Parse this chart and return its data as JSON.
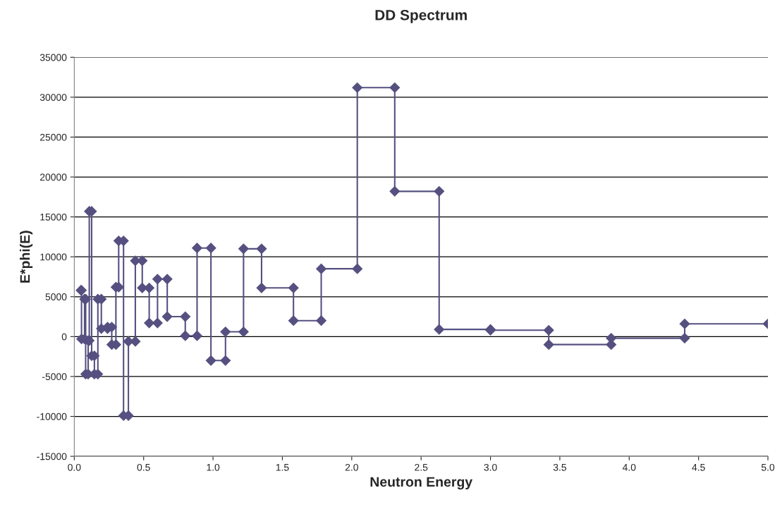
{
  "chart_data": {
    "type": "line",
    "title": "DD Spectrum",
    "xlabel": "Neutron Energy",
    "ylabel": "E*phi(E)",
    "xlim": [
      0,
      5
    ],
    "xticks": [
      {
        "value": 0,
        "label": "0.0"
      },
      {
        "value": 0.5,
        "label": "0.5"
      },
      {
        "value": 1,
        "label": "1.0"
      },
      {
        "value": 1.5,
        "label": "1.5"
      },
      {
        "value": 2,
        "label": "2.0"
      },
      {
        "value": 2.5,
        "label": "2.5"
      },
      {
        "value": 3,
        "label": "3.0"
      },
      {
        "value": 3.5,
        "label": "3.5"
      },
      {
        "value": 4,
        "label": "4.0"
      },
      {
        "value": 4.5,
        "label": "4.5"
      },
      {
        "value": 5,
        "label": "5.0"
      }
    ],
    "ylim": [
      -15000,
      35000
    ],
    "yticks": [
      -15000,
      -10000,
      -5000,
      0,
      5000,
      10000,
      15000,
      20000,
      25000,
      30000,
      35000
    ],
    "grid": "y",
    "marker": "diamond",
    "line_style": "solid",
    "legend": false,
    "series": [
      {
        "color": "#555080",
        "x": [
          0.048,
          0.052,
          0.052,
          0.074,
          0.074,
          0.082,
          0.082,
          0.1,
          0.1,
          0.108,
          0.108,
          0.125,
          0.125,
          0.145,
          0.145,
          0.17,
          0.17,
          0.195,
          0.195,
          0.24,
          0.24,
          0.27,
          0.27,
          0.3,
          0.3,
          0.32,
          0.32,
          0.355,
          0.355,
          0.39,
          0.39,
          0.44,
          0.44,
          0.49,
          0.49,
          0.54,
          0.54,
          0.6,
          0.6,
          0.67,
          0.67,
          0.8,
          0.8,
          0.885,
          0.885,
          0.985,
          0.985,
          1.09,
          1.09,
          1.22,
          1.22,
          1.35,
          1.35,
          1.58,
          1.58,
          1.78,
          1.78,
          2.04,
          2.04,
          2.31,
          2.31,
          2.63,
          2.63,
          3.0,
          3.0,
          3.42,
          3.42,
          3.87,
          3.87,
          4.4,
          4.4,
          5.0
        ],
        "values": [
          5800,
          5800,
          -300,
          -300,
          4700,
          4700,
          -4700,
          -4700,
          -500,
          -500,
          15700,
          15700,
          -2400,
          -2400,
          -4700,
          -4700,
          4700,
          4700,
          1000,
          1000,
          1200,
          1200,
          -1000,
          -1000,
          6200,
          6200,
          12000,
          12000,
          -9900,
          -9900,
          -600,
          -600,
          9500,
          9500,
          6100,
          6100,
          1700,
          1700,
          7200,
          7200,
          2500,
          2500,
          100,
          100,
          11100,
          11100,
          -3000,
          -3000,
          600,
          600,
          11000,
          11000,
          6100,
          6100,
          2000,
          2000,
          8500,
          8500,
          31200,
          31200,
          18200,
          18200,
          900,
          900,
          800,
          800,
          -1000,
          -1000,
          -200,
          -200,
          1600,
          1600
        ]
      }
    ]
  }
}
